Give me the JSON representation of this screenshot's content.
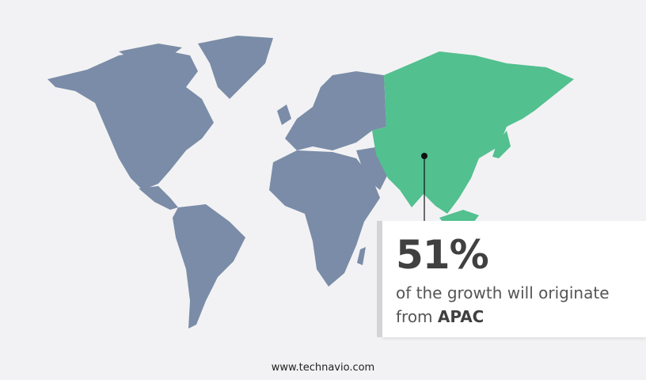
{
  "callout": {
    "value": "51%",
    "text": "of the growth will originate",
    "prefix": "from",
    "region": "APAC"
  },
  "footer": {
    "site": "www.technavio.com"
  },
  "colors": {
    "highlight": "#52c08f",
    "land": "#7a8ca7",
    "background": "#f2f2f4",
    "text": "#404040"
  },
  "map": {
    "highlighted_region": "APAC"
  }
}
